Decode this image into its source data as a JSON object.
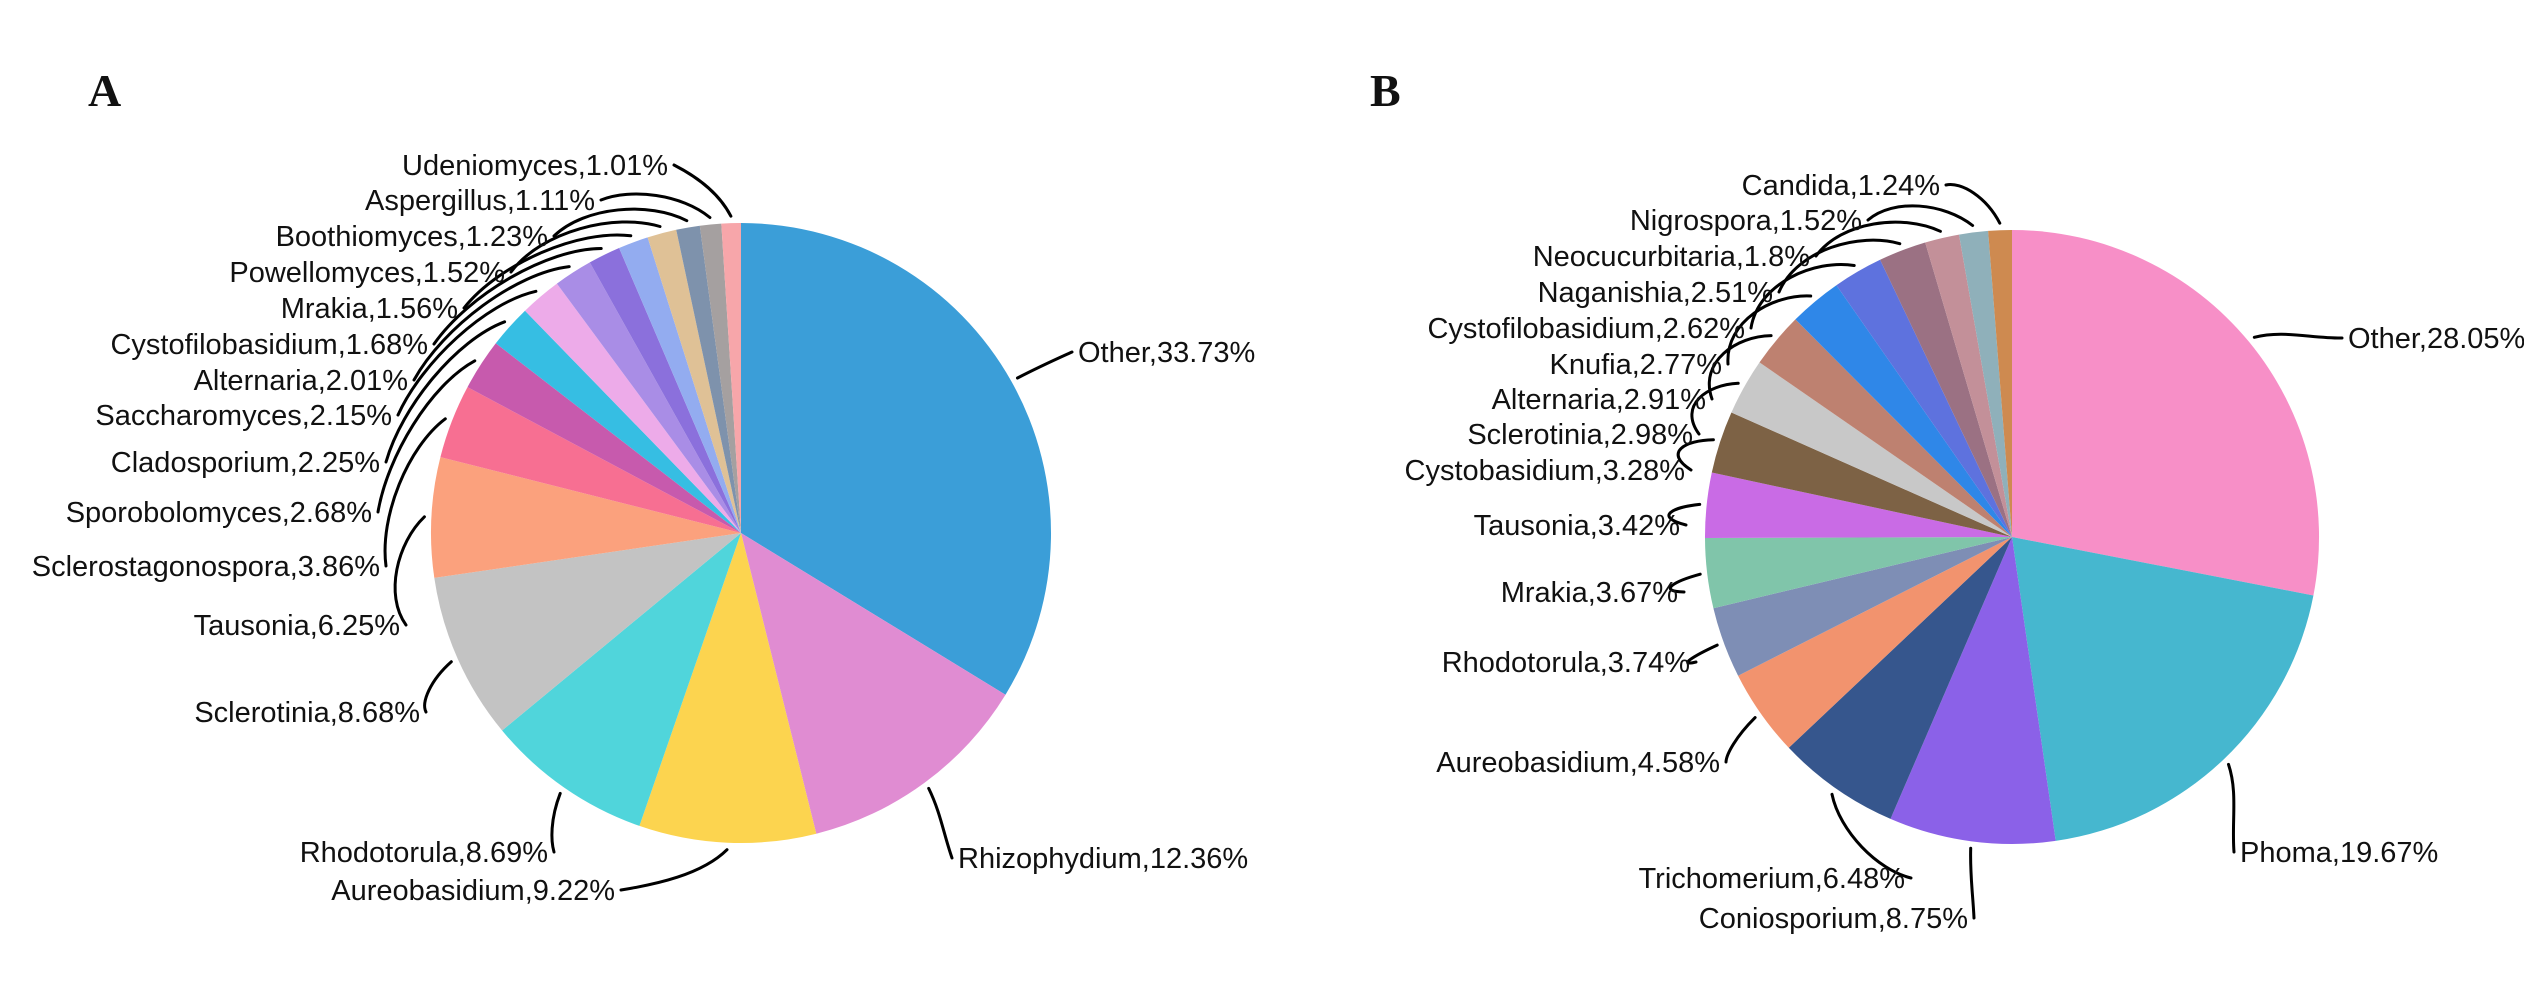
{
  "figure": {
    "background": "#ffffff",
    "description": "Two pie charts of fungal genus relative abundance",
    "label_format": "name,percent%"
  },
  "chart_data": [
    {
      "type": "pie",
      "panel_label": "A",
      "legend_position": "none",
      "start_angle_deg": 0,
      "direction": "clockwise",
      "slices": [
        {
          "name": "Other",
          "value": 33.73,
          "pct": "33.73",
          "color": "#3B9ED8"
        },
        {
          "name": "Rhizophydium",
          "value": 12.36,
          "pct": "12.36",
          "color": "#E08CD2"
        },
        {
          "name": "Aureobasidium",
          "value": 9.22,
          "pct": "9.22",
          "color": "#FCD44F"
        },
        {
          "name": "Rhodotorula",
          "value": 8.69,
          "pct": "8.69",
          "color": "#50D5DB"
        },
        {
          "name": "Sclerotinia",
          "value": 8.68,
          "pct": "8.68",
          "color": "#C3C3C3"
        },
        {
          "name": "Tausonia",
          "value": 6.25,
          "pct": "6.25",
          "color": "#FBA17D"
        },
        {
          "name": "Sclerostagonospora",
          "value": 3.86,
          "pct": "3.86",
          "color": "#F76F92"
        },
        {
          "name": "Sporobolomyces",
          "value": 2.68,
          "pct": "2.68",
          "color": "#C75AAD"
        },
        {
          "name": "Cladosporium",
          "value": 2.25,
          "pct": "2.25",
          "color": "#36BEE3"
        },
        {
          "name": "Saccharomyces",
          "value": 2.15,
          "pct": "2.15",
          "color": "#EDABE9"
        },
        {
          "name": "Alternaria",
          "value": 2.01,
          "pct": "2.01",
          "color": "#A98DE6"
        },
        {
          "name": "Cystofilobasidium",
          "value": 1.68,
          "pct": "1.68",
          "color": "#8B70DC"
        },
        {
          "name": "Mrakia",
          "value": 1.56,
          "pct": "1.56",
          "color": "#93ACF0"
        },
        {
          "name": "Powellomyces",
          "value": 1.52,
          "pct": "1.52",
          "color": "#DFC196"
        },
        {
          "name": "Boothiomyces",
          "value": 1.23,
          "pct": "1.23",
          "color": "#7E92AC"
        },
        {
          "name": "Aspergillus",
          "value": 1.11,
          "pct": "1.11",
          "color": "#A5A0A0"
        },
        {
          "name": "Udeniomyces",
          "value": 1.01,
          "pct": "1.01",
          "color": "#F7A6AA"
        }
      ]
    },
    {
      "type": "pie",
      "panel_label": "B",
      "legend_position": "none",
      "start_angle_deg": 0,
      "direction": "clockwise",
      "slices": [
        {
          "name": "Other",
          "value": 28.05,
          "pct": "28.05",
          "color": "#F78FC7"
        },
        {
          "name": "Phoma",
          "value": 19.67,
          "pct": "19.67",
          "color": "#46B7CF"
        },
        {
          "name": "Coniosporium",
          "value": 8.75,
          "pct": "8.75",
          "color": "#8B61E8"
        },
        {
          "name": "Trichomerium",
          "value": 6.48,
          "pct": "6.48",
          "color": "#36568D"
        },
        {
          "name": "Aureobasidium",
          "value": 4.58,
          "pct": "4.58",
          "color": "#F2936E"
        },
        {
          "name": "Rhodotorula",
          "value": 3.74,
          "pct": "3.74",
          "color": "#7E8EB5"
        },
        {
          "name": "Mrakia",
          "value": 3.67,
          "pct": "3.67",
          "color": "#80C5AA"
        },
        {
          "name": "Tausonia",
          "value": 3.42,
          "pct": "3.42",
          "color": "#C96BE5"
        },
        {
          "name": "Cystobasidium",
          "value": 3.28,
          "pct": "3.28",
          "color": "#7D6245"
        },
        {
          "name": "Sclerotinia",
          "value": 2.98,
          "pct": "2.98",
          "color": "#C8C8C8"
        },
        {
          "name": "Alternaria",
          "value": 2.91,
          "pct": "2.91",
          "color": "#BE8170"
        },
        {
          "name": "Knufia",
          "value": 2.77,
          "pct": "2.77",
          "color": "#2F87E8"
        },
        {
          "name": "Cystofilobasidium",
          "value": 2.62,
          "pct": "2.62",
          "color": "#5E72DE"
        },
        {
          "name": "Naganishia",
          "value": 2.51,
          "pct": "2.51",
          "color": "#9B7183"
        },
        {
          "name": "Neocucurbitaria",
          "value": 1.8,
          "pct": "1.8",
          "color": "#C39099"
        },
        {
          "name": "Nigrospora",
          "value": 1.52,
          "pct": "1.52",
          "color": "#8FB0BA"
        },
        {
          "name": "Candida",
          "value": 1.24,
          "pct": "1.24",
          "color": "#CE8A50"
        }
      ]
    }
  ]
}
